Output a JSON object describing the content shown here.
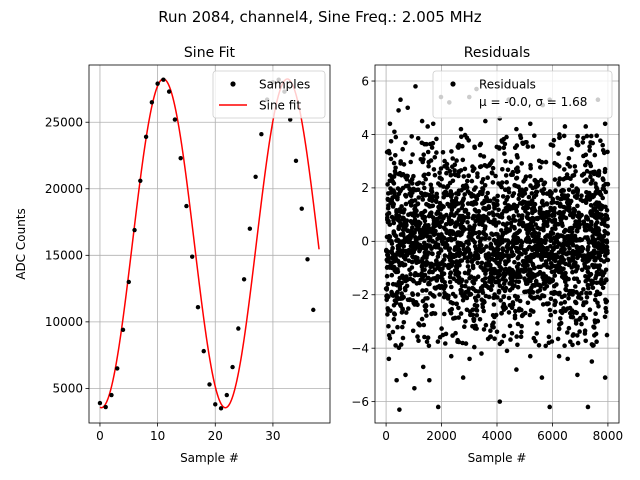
{
  "figure": {
    "suptitle": "Run 2084, channel4, Sine Freq.: 2.005 MHz"
  },
  "chart_data": [
    {
      "type": "line",
      "title": "Sine Fit",
      "xlabel": "Sample #",
      "ylabel": "ADC Counts",
      "xlim": [
        -1.9,
        39.9
      ],
      "ylim": [
        2400,
        29300
      ],
      "xticks": [
        0,
        10,
        20,
        30
      ],
      "yticks": [
        5000,
        10000,
        15000,
        20000,
        25000
      ],
      "grid": true,
      "legend": {
        "location": "upper right",
        "entries": [
          {
            "label": "Samples",
            "marker": "black-dot"
          },
          {
            "label": "Sine fit",
            "line": "red"
          }
        ]
      },
      "fit": {
        "mean": 15900,
        "amplitude": 12350,
        "period": 21.5,
        "peak_x": 11,
        "x_range": [
          0,
          38
        ]
      },
      "series": [
        {
          "name": "Samples",
          "style": "scatter",
          "color": "#000000",
          "x": [
            0,
            1,
            2,
            3,
            4,
            5,
            6,
            7,
            8,
            9,
            10,
            11,
            12,
            13,
            14,
            15,
            16,
            17,
            18,
            19,
            20,
            21,
            22,
            23,
            24,
            25,
            26,
            27,
            28,
            29,
            30,
            31,
            32,
            33,
            34,
            35,
            36,
            37
          ],
          "y": [
            3900,
            3600,
            4500,
            6500,
            9400,
            13000,
            16900,
            20600,
            23900,
            26500,
            27900,
            28200,
            27300,
            25200,
            22300,
            18700,
            14900,
            11100,
            7800,
            5300,
            3800,
            3500,
            4500,
            6600,
            9500,
            13200,
            17000,
            20900,
            24100,
            26700,
            28000,
            28200,
            27300,
            25200,
            22100,
            18500,
            14700,
            10900
          ]
        },
        {
          "name": "Sine fit",
          "style": "line",
          "color": "#ff0000"
        }
      ]
    },
    {
      "type": "scatter",
      "title": "Residuals",
      "xlabel": "Sample #",
      "ylabel": "",
      "xlim": [
        -400,
        8400
      ],
      "ylim": [
        -6.8,
        6.6
      ],
      "xticks": [
        0,
        2000,
        4000,
        6000,
        8000
      ],
      "yticks": [
        -6,
        -4,
        -2,
        0,
        2,
        4,
        6
      ],
      "grid": true,
      "legend": {
        "location": "upper right",
        "entries": [
          {
            "label": "Residuals",
            "marker": "black-dot"
          }
        ],
        "annotation": "μ = -0.0, σ = 1.68"
      },
      "summary": {
        "n_samples": 8000,
        "mean": -0.0,
        "std": 1.68
      },
      "series": [
        {
          "name": "Residuals",
          "color": "#000000",
          "outliers": [
            [
              140,
              4.4
            ],
            [
              300,
              4.1
            ],
            [
              450,
              4.9
            ],
            [
              520,
              5.3
            ],
            [
              780,
              5.0
            ],
            [
              1060,
              5.8
            ],
            [
              1300,
              4.5
            ],
            [
              1500,
              4.3
            ],
            [
              1700,
              4.4
            ],
            [
              1980,
              5.4
            ],
            [
              2280,
              5.2
            ],
            [
              2700,
              4.2
            ],
            [
              3000,
              5.4
            ],
            [
              3260,
              5.7
            ],
            [
              3580,
              4.5
            ],
            [
              4100,
              4.6
            ],
            [
              4420,
              5.3
            ],
            [
              4700,
              4.2
            ],
            [
              5200,
              4.4
            ],
            [
              5650,
              5.1
            ],
            [
              5900,
              5.3
            ],
            [
              6250,
              4.0
            ],
            [
              6450,
              4.3
            ],
            [
              7200,
              4.3
            ],
            [
              7640,
              5.3
            ],
            [
              7900,
              4.4
            ],
            [
              100,
              -4.4
            ],
            [
              380,
              -5.2
            ],
            [
              480,
              -6.3
            ],
            [
              700,
              -5.0
            ],
            [
              1020,
              -5.5
            ],
            [
              1340,
              -4.7
            ],
            [
              1560,
              -5.2
            ],
            [
              1880,
              -6.2
            ],
            [
              2350,
              -4.3
            ],
            [
              2780,
              -5.1
            ],
            [
              3010,
              -4.4
            ],
            [
              3440,
              -4.2
            ],
            [
              4100,
              -6.0
            ],
            [
              4360,
              -4.1
            ],
            [
              4700,
              -4.8
            ],
            [
              5200,
              -4.3
            ],
            [
              5620,
              -5.1
            ],
            [
              5900,
              -6.2
            ],
            [
              6240,
              -4.3
            ],
            [
              6550,
              -4.4
            ],
            [
              6900,
              -5.0
            ],
            [
              7280,
              -6.2
            ],
            [
              7420,
              -4.5
            ],
            [
              7900,
              -5.1
            ]
          ]
        }
      ]
    }
  ]
}
